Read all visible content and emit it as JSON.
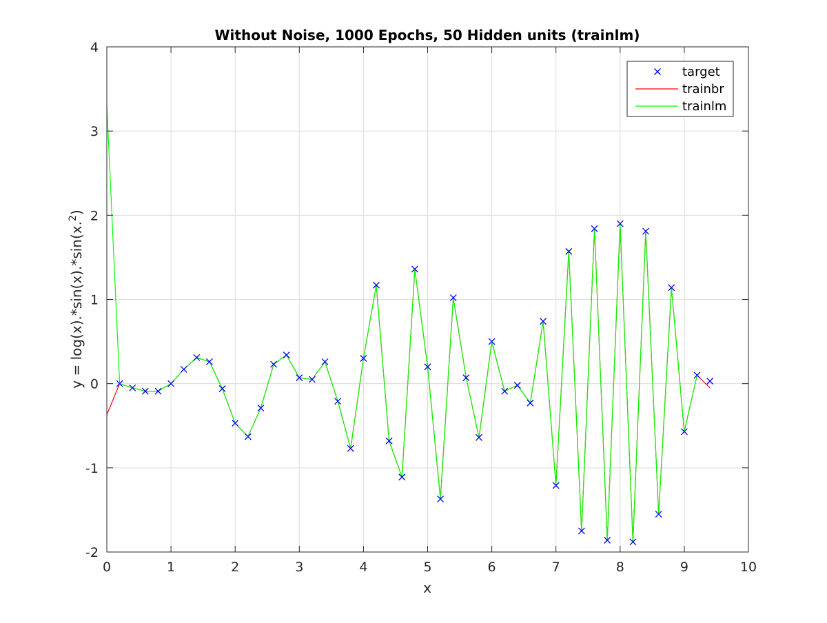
{
  "chart_data": {
    "type": "line",
    "title": "Without Noise, 1000 Epochs, 50 Hidden units (trainlm)",
    "xlabel": "x",
    "ylabel": "y = log(x).*sin(x).*sin(x.^2)",
    "xlim": [
      0,
      10
    ],
    "ylim": [
      -2,
      4
    ],
    "xticks": [
      "0",
      "1",
      "2",
      "3",
      "4",
      "5",
      "6",
      "7",
      "8",
      "9",
      "10"
    ],
    "yticks": [
      "-2",
      "-1",
      "0",
      "1",
      "2",
      "3",
      "4"
    ],
    "grid": true,
    "legend_position": "top-right",
    "x": [
      0,
      0.2,
      0.4,
      0.6,
      0.8,
      1.0,
      1.2,
      1.4,
      1.6,
      1.8,
      2.0,
      2.2,
      2.4,
      2.6,
      2.8,
      3.0,
      3.2,
      3.4,
      3.6,
      3.8,
      4.0,
      4.2,
      4.4,
      4.6,
      4.8,
      5.0,
      5.2,
      5.4,
      5.6,
      5.8,
      6.0,
      6.2,
      6.4,
      6.6,
      6.8,
      7.0,
      7.2,
      7.4,
      7.6,
      7.8,
      8.0,
      8.2,
      8.4,
      8.6,
      8.8,
      9.0,
      9.2,
      9.4
    ],
    "series": [
      {
        "name": "target",
        "style": "marker",
        "color": "#0000ff",
        "values": [
          null,
          0.0,
          -0.05,
          -0.09,
          -0.09,
          0.0,
          0.17,
          0.31,
          0.26,
          -0.06,
          -0.47,
          -0.63,
          -0.29,
          0.23,
          0.34,
          0.07,
          0.05,
          0.26,
          -0.21,
          -0.77,
          0.3,
          1.17,
          -0.68,
          -1.11,
          1.36,
          0.2,
          -1.37,
          1.02,
          0.07,
          -0.64,
          0.5,
          -0.09,
          -0.02,
          -0.23,
          0.74,
          -1.21,
          1.57,
          -1.75,
          1.84,
          -1.86,
          1.9,
          -1.88,
          1.81,
          -1.55,
          1.14,
          -0.57,
          0.1,
          0.03
        ]
      },
      {
        "name": "trainbr",
        "style": "line",
        "color": "#ff0000",
        "values": [
          -0.37,
          0.0,
          -0.05,
          -0.09,
          -0.09,
          0.0,
          0.17,
          0.31,
          0.26,
          -0.06,
          -0.47,
          -0.63,
          -0.29,
          0.23,
          0.34,
          0.07,
          0.05,
          0.26,
          -0.21,
          -0.77,
          0.3,
          1.17,
          -0.68,
          -1.11,
          1.36,
          0.2,
          -1.37,
          1.02,
          0.07,
          -0.64,
          0.5,
          -0.09,
          -0.02,
          -0.23,
          0.74,
          -1.21,
          1.57,
          -1.75,
          1.84,
          -1.86,
          1.9,
          -1.88,
          1.81,
          -1.55,
          1.14,
          -0.57,
          0.1,
          -0.05
        ]
      },
      {
        "name": "trainlm",
        "style": "line",
        "color": "#00ff00",
        "values": [
          3.32,
          0.0,
          -0.05,
          -0.09,
          -0.09,
          0.0,
          0.17,
          0.31,
          0.26,
          -0.06,
          -0.47,
          -0.63,
          -0.29,
          0.23,
          0.34,
          0.07,
          0.05,
          0.26,
          -0.21,
          -0.77,
          0.3,
          1.17,
          -0.68,
          -1.11,
          1.36,
          0.2,
          -1.37,
          1.02,
          0.07,
          -0.64,
          0.5,
          -0.09,
          -0.02,
          -0.23,
          0.74,
          -1.21,
          1.57,
          -1.75,
          1.84,
          -1.86,
          1.9,
          -1.88,
          1.81,
          -1.55,
          1.14,
          -0.57,
          0.1,
          null
        ]
      }
    ]
  }
}
